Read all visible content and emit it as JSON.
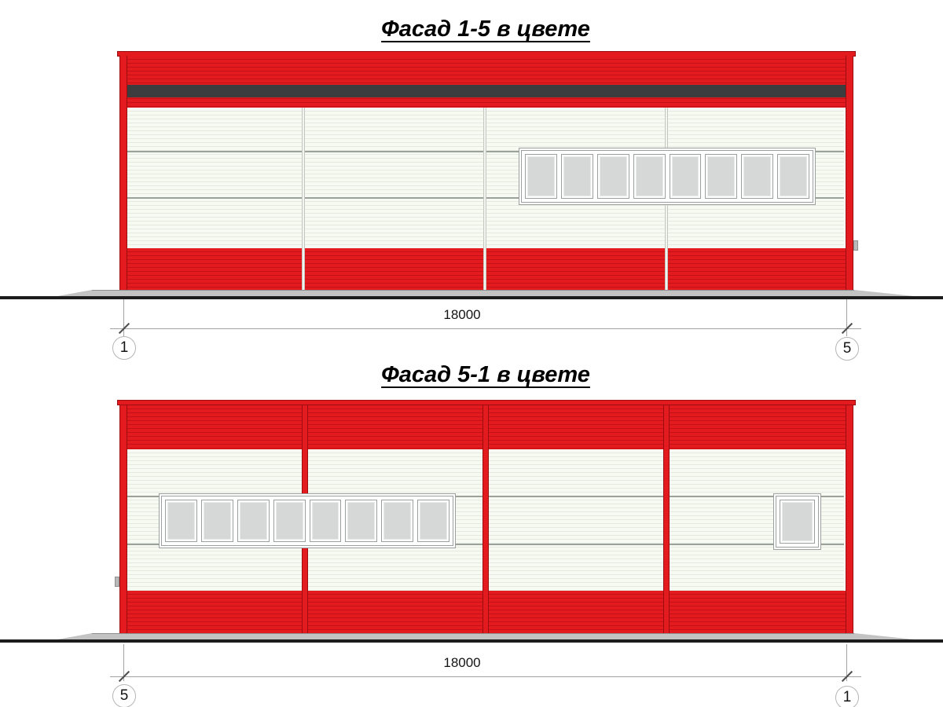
{
  "sheet": {
    "background": "#ffffff"
  },
  "colors": {
    "red": "#e31b1f",
    "redline": "#c31117",
    "rededge": "#9c0d11",
    "stripe": "#3d3d3f",
    "panel": "#f7f9f3",
    "panelline": "#e4eade",
    "joint": "#9ba29a",
    "vline": "#f2f4f0",
    "vlineedge": "#c3c7c0",
    "frame": "#9aa09e",
    "glass": "#d6d8d7",
    "foundation": "#c3c3c3",
    "foundationedge": "#8f8f8f",
    "groundline": "#1c1c1c",
    "dimline": "#a3a3a3",
    "tick": "#4d4d4d",
    "text": "#141414",
    "circleedge": "#b5b5b5"
  },
  "facades": [
    {
      "title": "Фасад 1-5 в цвете",
      "dimension_label": "18000",
      "axis_left": "1",
      "axis_right": "5",
      "ribbon_panes": 8
    },
    {
      "title": "Фасад 5-1 в цвете",
      "dimension_label": "18000",
      "axis_left": "5",
      "axis_right": "1",
      "ribbon_panes": 8,
      "small_window_panes": 1
    }
  ]
}
